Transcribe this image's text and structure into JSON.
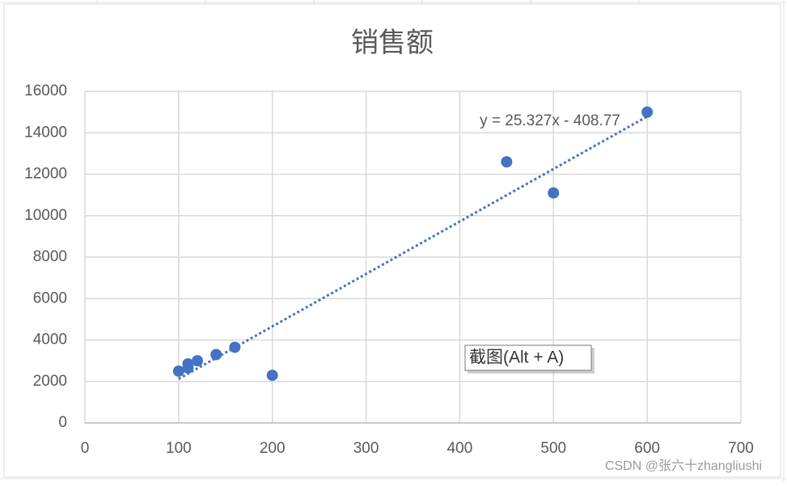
{
  "chart_data": {
    "type": "scatter",
    "title": "销售额",
    "x": [
      100,
      110,
      110,
      120,
      140,
      160,
      200,
      450,
      500,
      600
    ],
    "series": [
      {
        "name": "销售额",
        "color": "#4472c4",
        "values": [
          2500,
          2850,
          2650,
          3000,
          3300,
          3650,
          2300,
          12600,
          11100,
          15000
        ]
      }
    ],
    "xlim": [
      0,
      700
    ],
    "xticks": [
      0,
      100,
      200,
      300,
      400,
      500,
      600,
      700
    ],
    "ylim": [
      0,
      16000
    ],
    "yticks": [
      0,
      2000,
      4000,
      6000,
      8000,
      10000,
      12000,
      14000,
      16000
    ],
    "grid": true,
    "trendline": {
      "slope": 25.327,
      "intercept": -408.77,
      "label": "y = 25.327x - 408.77"
    }
  },
  "tooltip": "截图(Alt + A)",
  "watermark": "CSDN @张六十zhangliushi"
}
